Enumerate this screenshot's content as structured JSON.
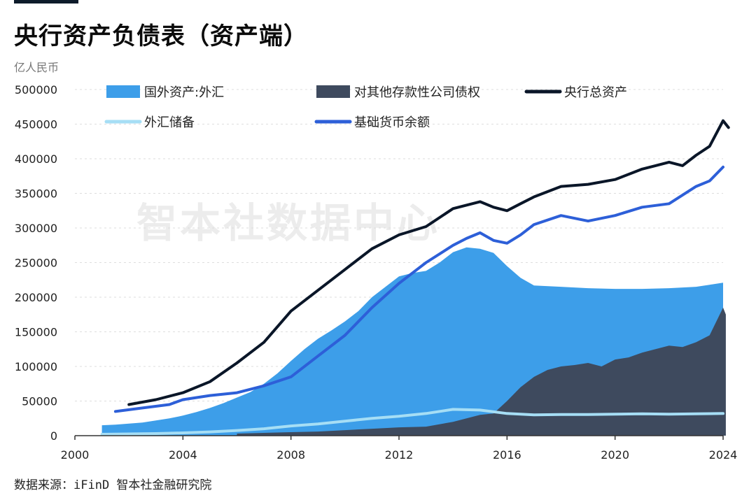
{
  "title": "央行资产负债表（资产端）",
  "unit_label": "亿人民币",
  "source": "数据来源：iFinD 智本社金融研究院",
  "watermark": "智本社数据中心",
  "chart_data": {
    "type": "area",
    "x_ticks": [
      2000,
      2004,
      2008,
      2012,
      2016,
      2020,
      2024
    ],
    "y_ticks": [
      0,
      50000,
      100000,
      150000,
      200000,
      250000,
      300000,
      350000,
      400000,
      450000,
      500000
    ],
    "xlim": [
      2000,
      2024
    ],
    "ylim": [
      0,
      500000
    ],
    "grid": "horizontal dashed",
    "legend_position": "top",
    "series": [
      {
        "name": "国外资产:外汇",
        "kind": "area",
        "color": "#3d9ee9",
        "points": [
          [
            2001.0,
            15000
          ],
          [
            2001.5,
            16000
          ],
          [
            2002.0,
            17500
          ],
          [
            2002.5,
            19000
          ],
          [
            2003.0,
            22000
          ],
          [
            2003.5,
            25000
          ],
          [
            2004.0,
            29000
          ],
          [
            2004.5,
            34000
          ],
          [
            2005.0,
            40000
          ],
          [
            2005.5,
            47000
          ],
          [
            2006.0,
            55000
          ],
          [
            2006.5,
            63000
          ],
          [
            2007.0,
            75000
          ],
          [
            2007.5,
            90000
          ],
          [
            2008.0,
            108000
          ],
          [
            2008.5,
            125000
          ],
          [
            2009.0,
            140000
          ],
          [
            2009.5,
            152000
          ],
          [
            2010.0,
            165000
          ],
          [
            2010.5,
            180000
          ],
          [
            2011.0,
            200000
          ],
          [
            2011.5,
            215000
          ],
          [
            2012.0,
            230000
          ],
          [
            2012.5,
            235000
          ],
          [
            2013.0,
            238000
          ],
          [
            2013.5,
            250000
          ],
          [
            2014.0,
            265000
          ],
          [
            2014.5,
            272000
          ],
          [
            2015.0,
            270000
          ],
          [
            2015.5,
            264000
          ],
          [
            2016.0,
            245000
          ],
          [
            2016.5,
            228000
          ],
          [
            2017.0,
            217000
          ],
          [
            2018.0,
            215000
          ],
          [
            2019.0,
            213000
          ],
          [
            2020.0,
            212000
          ],
          [
            2021.0,
            212000
          ],
          [
            2022.0,
            213000
          ],
          [
            2023.0,
            215000
          ],
          [
            2023.5,
            218000
          ],
          [
            2024.0,
            221000
          ]
        ]
      },
      {
        "name": "对其他存款性公司债权",
        "kind": "area",
        "color": "#3e4a5e",
        "points": [
          [
            2006.0,
            3000
          ],
          [
            2007.0,
            4000
          ],
          [
            2008.0,
            5000
          ],
          [
            2009.0,
            6000
          ],
          [
            2010.0,
            8000
          ],
          [
            2011.0,
            10000
          ],
          [
            2012.0,
            12000
          ],
          [
            2013.0,
            13000
          ],
          [
            2014.0,
            20000
          ],
          [
            2014.5,
            25000
          ],
          [
            2015.0,
            30000
          ],
          [
            2015.5,
            32000
          ],
          [
            2016.0,
            50000
          ],
          [
            2016.5,
            70000
          ],
          [
            2017.0,
            85000
          ],
          [
            2017.5,
            95000
          ],
          [
            2018.0,
            100000
          ],
          [
            2018.5,
            102000
          ],
          [
            2019.0,
            105000
          ],
          [
            2019.5,
            100000
          ],
          [
            2020.0,
            110000
          ],
          [
            2020.5,
            113000
          ],
          [
            2021.0,
            120000
          ],
          [
            2021.5,
            125000
          ],
          [
            2022.0,
            130000
          ],
          [
            2022.5,
            128000
          ],
          [
            2023.0,
            135000
          ],
          [
            2023.5,
            145000
          ],
          [
            2024.0,
            185000
          ],
          [
            2024.1,
            175000
          ]
        ]
      },
      {
        "name": "央行总资产",
        "kind": "line",
        "color": "#0a1628",
        "points": [
          [
            2002.0,
            45000
          ],
          [
            2003.0,
            52000
          ],
          [
            2004.0,
            62000
          ],
          [
            2005.0,
            78000
          ],
          [
            2006.0,
            105000
          ],
          [
            2007.0,
            135000
          ],
          [
            2008.0,
            180000
          ],
          [
            2009.0,
            210000
          ],
          [
            2010.0,
            240000
          ],
          [
            2011.0,
            270000
          ],
          [
            2012.0,
            290000
          ],
          [
            2013.0,
            302000
          ],
          [
            2014.0,
            328000
          ],
          [
            2015.0,
            338000
          ],
          [
            2015.5,
            330000
          ],
          [
            2016.0,
            325000
          ],
          [
            2016.5,
            335000
          ],
          [
            2017.0,
            345000
          ],
          [
            2018.0,
            360000
          ],
          [
            2019.0,
            363000
          ],
          [
            2020.0,
            370000
          ],
          [
            2021.0,
            385000
          ],
          [
            2021.5,
            390000
          ],
          [
            2022.0,
            395000
          ],
          [
            2022.5,
            390000
          ],
          [
            2023.0,
            405000
          ],
          [
            2023.5,
            418000
          ],
          [
            2024.0,
            455000
          ],
          [
            2024.2,
            445000
          ]
        ]
      },
      {
        "name": "外汇储备",
        "kind": "line",
        "color": "#a6def5",
        "points": [
          [
            2001.0,
            2000
          ],
          [
            2002.0,
            2500
          ],
          [
            2003.0,
            3000
          ],
          [
            2004.0,
            4000
          ],
          [
            2005.0,
            5500
          ],
          [
            2006.0,
            7500
          ],
          [
            2007.0,
            10000
          ],
          [
            2008.0,
            14000
          ],
          [
            2009.0,
            17000
          ],
          [
            2010.0,
            21000
          ],
          [
            2011.0,
            25000
          ],
          [
            2012.0,
            28000
          ],
          [
            2013.0,
            32000
          ],
          [
            2014.0,
            38000
          ],
          [
            2015.0,
            37000
          ],
          [
            2016.0,
            32000
          ],
          [
            2017.0,
            30000
          ],
          [
            2018.0,
            30500
          ],
          [
            2019.0,
            30500
          ],
          [
            2020.0,
            31000
          ],
          [
            2021.0,
            31500
          ],
          [
            2022.0,
            31000
          ],
          [
            2023.0,
            31500
          ],
          [
            2024.0,
            32000
          ]
        ]
      },
      {
        "name": "基础货币余额",
        "kind": "line",
        "color": "#2d5fd8",
        "points": [
          [
            2001.5,
            35000
          ],
          [
            2002.5,
            40000
          ],
          [
            2003.5,
            45000
          ],
          [
            2004.0,
            52000
          ],
          [
            2005.0,
            58000
          ],
          [
            2006.0,
            62000
          ],
          [
            2007.0,
            72000
          ],
          [
            2008.0,
            85000
          ],
          [
            2009.0,
            115000
          ],
          [
            2010.0,
            145000
          ],
          [
            2011.0,
            185000
          ],
          [
            2012.0,
            220000
          ],
          [
            2013.0,
            250000
          ],
          [
            2014.0,
            275000
          ],
          [
            2014.5,
            285000
          ],
          [
            2015.0,
            293000
          ],
          [
            2015.5,
            282000
          ],
          [
            2016.0,
            278000
          ],
          [
            2016.5,
            290000
          ],
          [
            2017.0,
            305000
          ],
          [
            2018.0,
            318000
          ],
          [
            2019.0,
            310000
          ],
          [
            2020.0,
            318000
          ],
          [
            2021.0,
            330000
          ],
          [
            2022.0,
            335000
          ],
          [
            2023.0,
            360000
          ],
          [
            2023.5,
            368000
          ],
          [
            2024.0,
            388000
          ]
        ]
      }
    ]
  }
}
